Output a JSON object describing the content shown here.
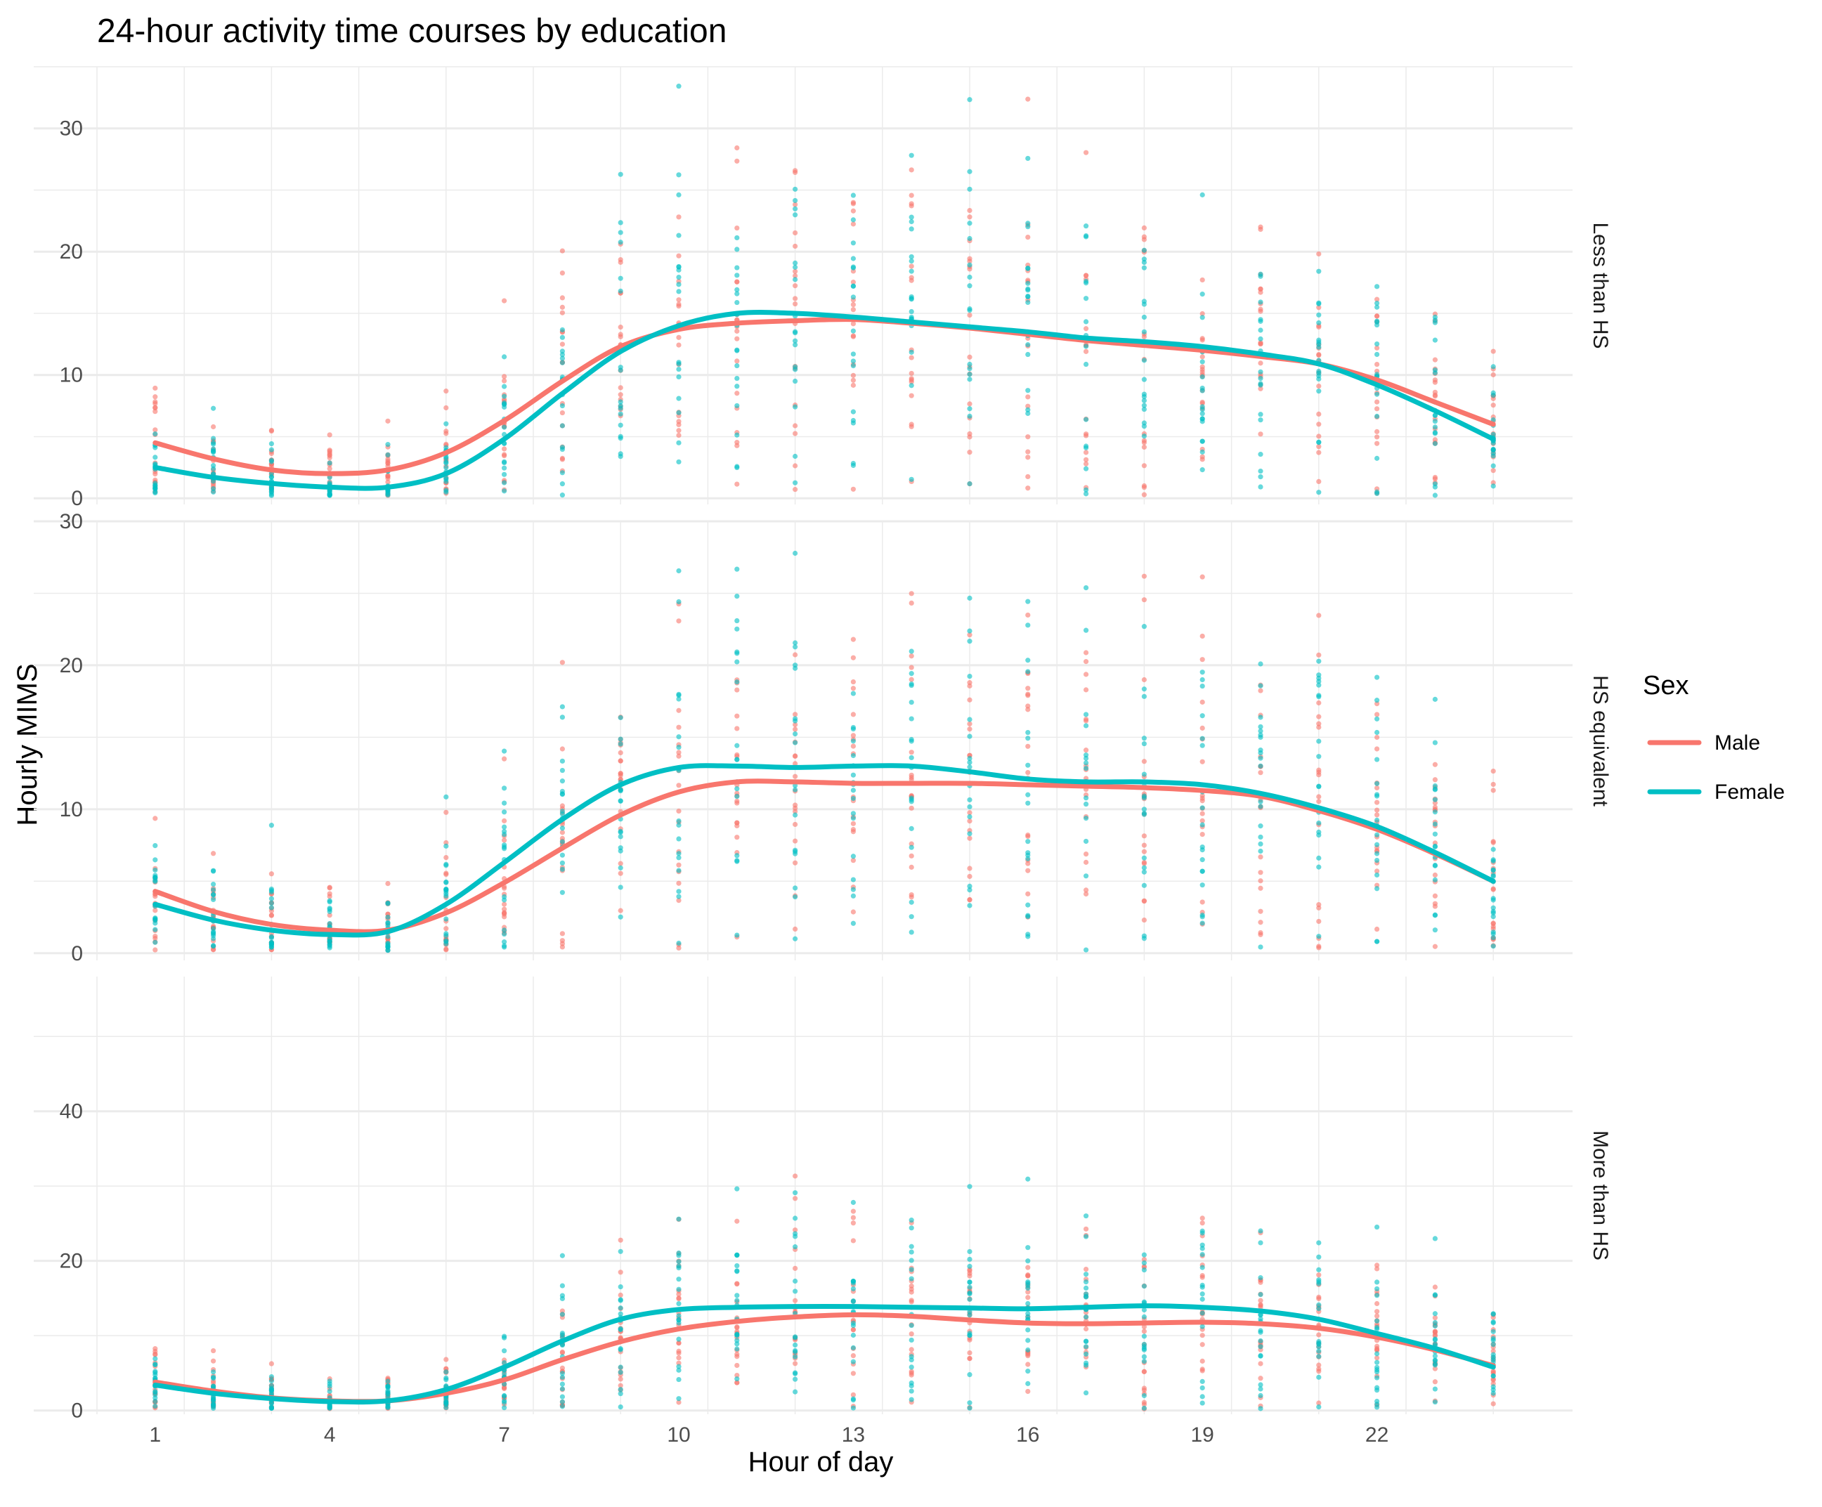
{
  "chart_data": {
    "type": "line",
    "title": "24-hour activity time courses by education",
    "xlabel": "Hour of day",
    "ylabel": "Hourly MIMS",
    "x_ticks": [
      1,
      4,
      7,
      10,
      13,
      16,
      19,
      22
    ],
    "xlim": [
      0,
      25
    ],
    "grid": true,
    "legend": {
      "title": "Sex",
      "position": "right",
      "entries": [
        {
          "name": "Male",
          "color": "#F8766D"
        },
        {
          "name": "Female",
          "color": "#00BFC4"
        }
      ]
    },
    "hours": [
      1,
      2,
      3,
      4,
      5,
      6,
      7,
      8,
      9,
      10,
      11,
      12,
      13,
      14,
      15,
      16,
      17,
      18,
      19,
      20,
      21,
      22,
      23,
      24
    ],
    "panels": [
      {
        "label": "Less than HS",
        "ylim": [
          -0.5,
          35
        ],
        "y_ticks": [
          0,
          10,
          20,
          30
        ],
        "series": [
          {
            "name": "Male",
            "color": "#F8766D",
            "values": [
              4.5,
              3.2,
              2.3,
              2.0,
              2.3,
              3.7,
              6.3,
              9.5,
              12.3,
              13.7,
              14.2,
              14.4,
              14.5,
              14.2,
              13.8,
              13.3,
              12.8,
              12.4,
              12.0,
              11.5,
              10.9,
              9.6,
              7.8,
              6.0
            ]
          },
          {
            "name": "Female",
            "color": "#00BFC4",
            "values": [
              2.5,
              1.7,
              1.2,
              0.9,
              0.9,
              2.0,
              4.8,
              8.5,
              11.9,
              14.0,
              15.0,
              15.0,
              14.7,
              14.3,
              13.9,
              13.5,
              13.0,
              12.7,
              12.3,
              11.7,
              10.9,
              9.2,
              7.1,
              4.8
            ]
          }
        ]
      },
      {
        "label": "HS equivalent",
        "ylim": [
          -0.5,
          30
        ],
        "y_ticks": [
          0,
          10,
          20,
          30
        ],
        "series": [
          {
            "name": "Male",
            "color": "#F8766D",
            "values": [
              4.3,
              2.9,
              2.0,
              1.6,
              1.6,
              2.8,
              4.9,
              7.3,
              9.6,
              11.2,
              11.9,
              11.9,
              11.8,
              11.8,
              11.8,
              11.7,
              11.6,
              11.5,
              11.3,
              10.9,
              9.9,
              8.6,
              6.9,
              5.0
            ]
          },
          {
            "name": "Female",
            "color": "#00BFC4",
            "values": [
              3.4,
              2.3,
              1.6,
              1.3,
              1.5,
              3.4,
              6.3,
              9.3,
              11.7,
              12.9,
              13.0,
              12.9,
              13.0,
              13.0,
              12.6,
              12.1,
              11.9,
              11.9,
              11.7,
              11.1,
              10.1,
              8.8,
              7.0,
              5.0
            ]
          }
        ]
      },
      {
        "label": "More than HS",
        "ylim": [
          -0.5,
          58
        ],
        "y_ticks": [
          0,
          20,
          40
        ],
        "series": [
          {
            "name": "Male",
            "color": "#F8766D",
            "values": [
              3.8,
              2.6,
              1.7,
              1.3,
              1.3,
              2.3,
              4.1,
              6.8,
              9.2,
              10.9,
              11.9,
              12.5,
              12.8,
              12.6,
              12.1,
              11.7,
              11.6,
              11.7,
              11.8,
              11.6,
              11.0,
              9.8,
              8.1,
              6.0
            ]
          },
          {
            "name": "Female",
            "color": "#00BFC4",
            "values": [
              3.4,
              2.3,
              1.6,
              1.2,
              1.3,
              2.8,
              5.8,
              9.3,
              12.2,
              13.5,
              13.8,
              13.9,
              13.9,
              13.8,
              13.7,
              13.6,
              13.8,
              14.0,
              13.8,
              13.3,
              12.2,
              10.3,
              8.3,
              5.8
            ]
          }
        ]
      }
    ]
  }
}
